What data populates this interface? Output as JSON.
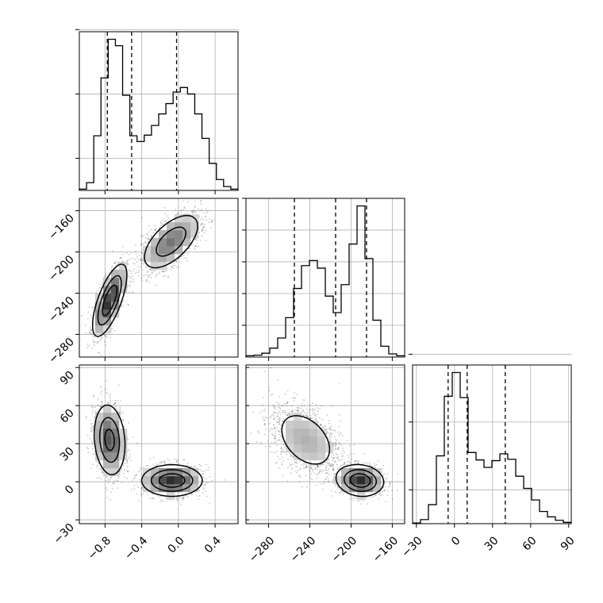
{
  "chart_data": {
    "type": "corner",
    "title": "",
    "grid": true,
    "parameters": [
      {
        "xlabel": "",
        "range": [
          -1.08,
          0.65
        ],
        "ticks": [
          -0.8,
          -0.4,
          0.0,
          0.4
        ],
        "tick_labels": [
          "−0.8",
          "−0.4",
          "0.0",
          "0.4"
        ],
        "quantiles": [
          -0.775,
          -0.51,
          -0.02
        ],
        "hist_counts": [
          2,
          12,
          85,
          175,
          235,
          225,
          148,
          85,
          76,
          86,
          101,
          119,
          135,
          153,
          160,
          150,
          119,
          81,
          42,
          17,
          6,
          2
        ]
      },
      {
        "xlabel": "",
        "range": [
          -302,
          -148
        ],
        "ticks": [
          -280,
          -240,
          -200,
          -160
        ],
        "tick_labels": [
          "−280",
          "−240",
          "−200",
          "−160"
        ],
        "quantiles": [
          -255,
          -215,
          -185
        ],
        "hist_counts": [
          2,
          3,
          6,
          14,
          30,
          62,
          108,
          144,
          152,
          140,
          96,
          70,
          114,
          178,
          238,
          155,
          58,
          17,
          5,
          2
        ]
      },
      {
        "xlabel": "",
        "range": [
          -33,
          92
        ],
        "ticks": [
          -30,
          0,
          30,
          60,
          90
        ],
        "tick_labels": [
          "−30",
          "0",
          "30",
          "60",
          "90"
        ],
        "quantiles": [
          -5,
          10,
          40
        ],
        "hist_counts": [
          1,
          6,
          28,
          100,
          188,
          223,
          186,
          105,
          94,
          83,
          93,
          103,
          95,
          70,
          52,
          35,
          18,
          10,
          5,
          2
        ]
      }
    ],
    "hist_ylabels": [
      [
        "",
        "",
        ""
      ],
      [
        "",
        "",
        "",
        "",
        ""
      ],
      [
        "",
        "",
        ""
      ]
    ],
    "hist_yticks": [
      [
        50,
        150,
        250
      ],
      [
        50,
        100,
        150,
        200,
        250
      ],
      [
        50,
        150,
        250
      ]
    ],
    "pairs": [
      {
        "x": 0,
        "y": 1,
        "modes": [
          {
            "center": [
              -0.75,
              -247
            ],
            "sd": [
              0.09,
              17
            ],
            "rho": 0.7,
            "weight": 0.5
          },
          {
            "center": [
              -0.08,
              -190
            ],
            "sd": [
              0.16,
              14
            ],
            "rho": 0.6,
            "weight": 0.5
          }
        ],
        "contour_levels": [
          0.12,
          0.37,
          0.68
        ]
      },
      {
        "x": 0,
        "y": 2,
        "modes": [
          {
            "center": [
              -0.75,
              33
            ],
            "sd": [
              0.085,
              14
            ],
            "rho": -0.15,
            "weight": 0.5
          },
          {
            "center": [
              -0.07,
              1
            ],
            "sd": [
              0.16,
              6
            ],
            "rho": 0.0,
            "weight": 0.5
          }
        ],
        "contour_levels": [
          0.12,
          0.37,
          0.68
        ]
      },
      {
        "x": 1,
        "y": 2,
        "modes": [
          {
            "center": [
              -244,
              33
            ],
            "sd": [
              17,
              14
            ],
            "rho": -0.4,
            "weight": 0.5
          },
          {
            "center": [
              -191,
              1
            ],
            "sd": [
              11,
              6
            ],
            "rho": -0.1,
            "weight": 0.5
          }
        ],
        "contour_levels": [
          0.12,
          0.37,
          0.68
        ]
      }
    ]
  }
}
